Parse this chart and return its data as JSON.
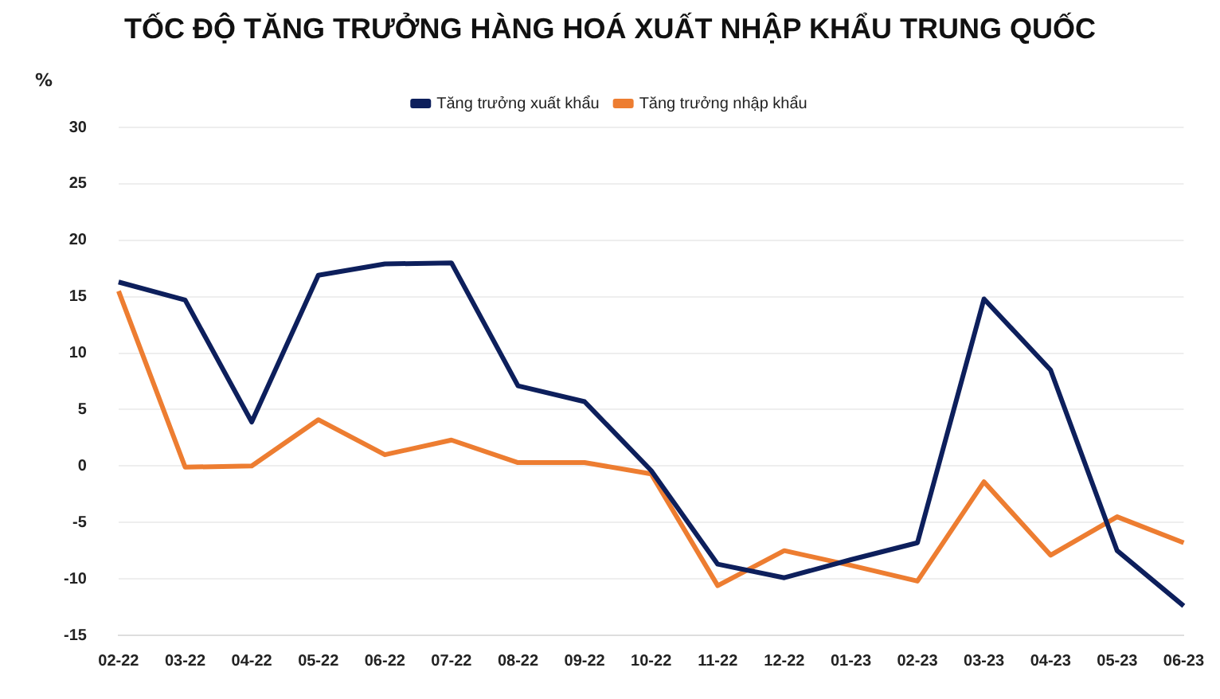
{
  "chart_data": {
    "type": "line",
    "title": "TỐC ĐỘ TĂNG TRƯỞNG HÀNG HOÁ XUẤT NHẬP KHẨU TRUNG QUỐC",
    "ylabel": "%",
    "categories": [
      "02-22",
      "03-22",
      "04-22",
      "05-22",
      "06-22",
      "07-22",
      "08-22",
      "09-22",
      "10-22",
      "11-22",
      "12-22",
      "01-23",
      "02-23",
      "03-23",
      "04-23",
      "05-23",
      "06-23"
    ],
    "series": [
      {
        "name": "Tăng trưởng xuất khẩu",
        "color": "#0d1f5c",
        "values": [
          16.3,
          14.7,
          3.9,
          16.9,
          17.9,
          18.0,
          7.1,
          5.7,
          -0.4,
          -8.7,
          -9.9,
          -8.3,
          -6.8,
          14.8,
          8.5,
          -7.5,
          -12.4
        ]
      },
      {
        "name": "Tăng trưởng nhập khẩu",
        "color": "#ed7d31",
        "values": [
          15.5,
          -0.1,
          0.0,
          4.1,
          1.0,
          2.3,
          0.3,
          0.3,
          -0.7,
          -10.6,
          -7.5,
          -8.8,
          -10.2,
          -1.4,
          -7.9,
          -4.5,
          -6.8
        ]
      }
    ],
    "ylim": [
      -15,
      30
    ],
    "yticks": [
      -15,
      -10,
      -5,
      0,
      5,
      10,
      15,
      20,
      25,
      30
    ],
    "grid": "y",
    "legend": "top",
    "marker": "none",
    "line_style": "solid"
  }
}
